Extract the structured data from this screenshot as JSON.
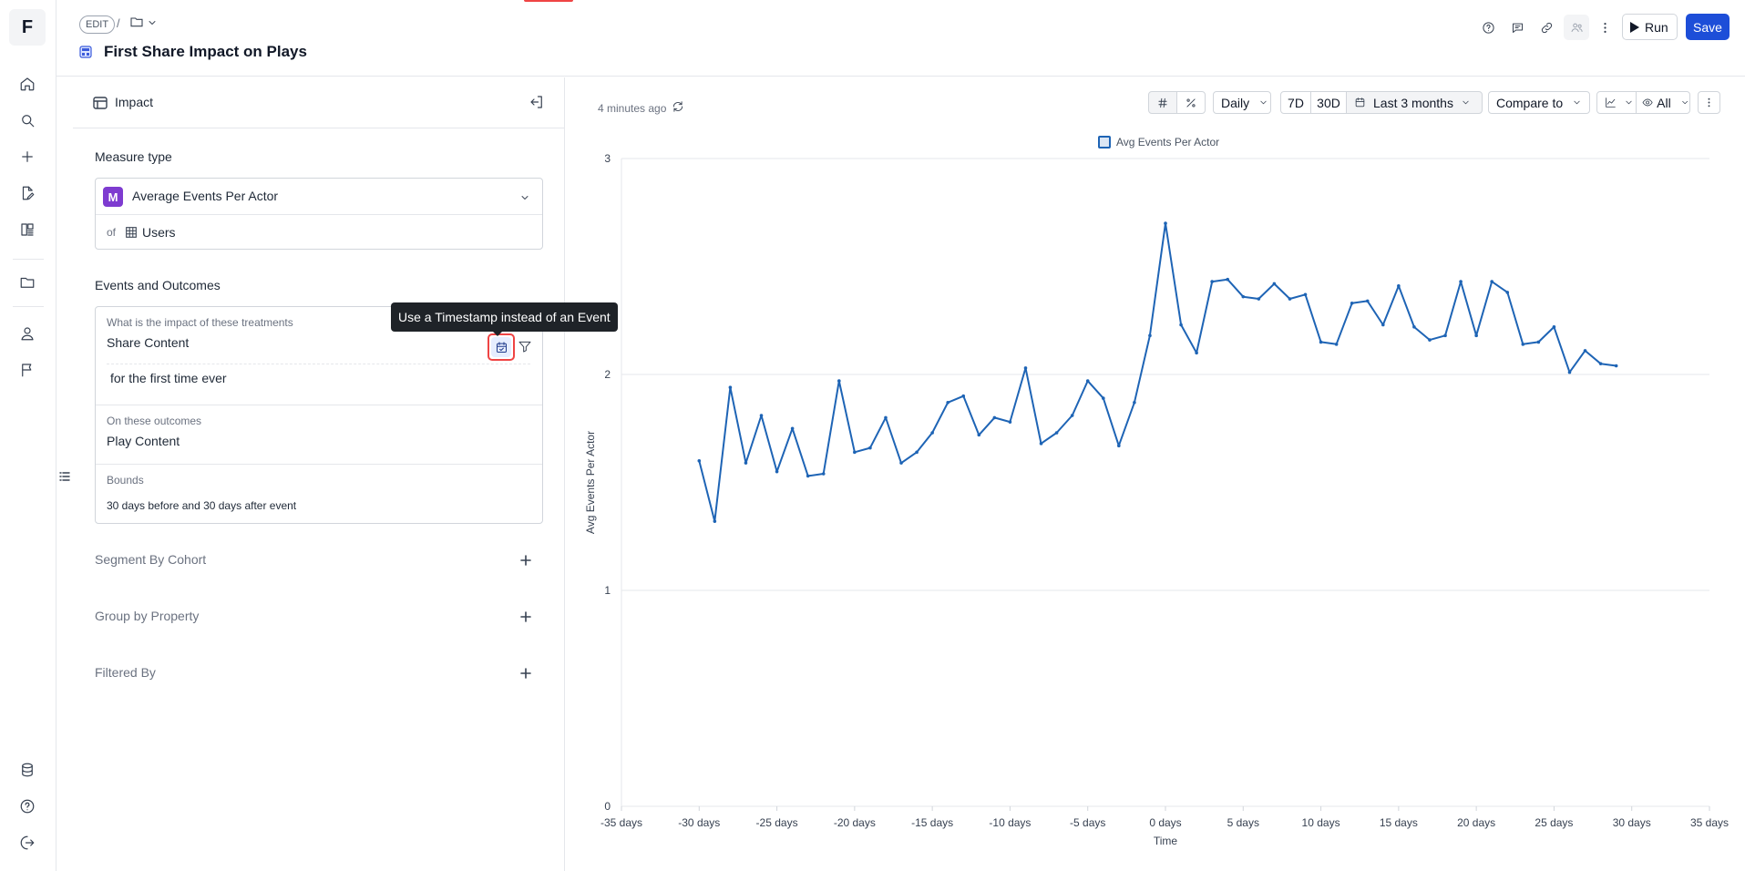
{
  "app": {
    "logo_letter": "F"
  },
  "rail": {
    "items": [
      "home-icon",
      "search-icon",
      "plus-icon",
      "edit-file-icon",
      "dashboard-icon",
      "folder-icon",
      "user-icon",
      "flag-icon"
    ],
    "bottom": [
      "database-icon",
      "help-icon",
      "logout-icon"
    ]
  },
  "header": {
    "edit_label": "EDIT",
    "separator": "/",
    "title": "First Share Impact on Plays",
    "run_label": "Run",
    "save_label": "Save",
    "accent": "#1d4ed8"
  },
  "panel": {
    "title": "Impact",
    "measure_section": "Measure type",
    "measure_badge": "M",
    "measure_value": "Average Events Per Actor",
    "of_label": "of",
    "of_value": "Users",
    "events_section": "Events and Outcomes",
    "treatments_label": "What is the impact of these treatments",
    "treatment_value": "Share Content",
    "treatment_qualifier": "for the first time ever",
    "outcomes_label": "On these outcomes",
    "outcome_value": "Play Content",
    "bounds_label": "Bounds",
    "bounds_value": "30 days before and 30 days after event",
    "tooltip": "Use a Timestamp instead of an Event",
    "segment_label": "Segment By Cohort",
    "group_label": "Group by Property",
    "filter_label": "Filtered By"
  },
  "toolbar": {
    "updated": "4 minutes ago",
    "granularity": "Daily",
    "range_7d": "7D",
    "range_30d": "30D",
    "range_custom": "Last 3 months",
    "compare": "Compare to",
    "visibility": "All"
  },
  "chart_data": {
    "type": "line",
    "legend": [
      "Avg Events Per Actor"
    ],
    "xlabel": "Time",
    "ylabel": "Avg Events Per Actor",
    "xlim": [
      -35,
      35
    ],
    "ylim": [
      0,
      3
    ],
    "x_ticks": [
      -35,
      -30,
      -25,
      -20,
      -15,
      -10,
      -5,
      0,
      5,
      10,
      15,
      20,
      25,
      30,
      35
    ],
    "x_tick_labels": [
      "-35 days",
      "-30 days",
      "-25 days",
      "-20 days",
      "-15 days",
      "-10 days",
      "-5 days",
      "0 days",
      "5 days",
      "10 days",
      "15 days",
      "20 days",
      "25 days",
      "30 days",
      "35 days"
    ],
    "y_ticks": [
      0,
      1,
      2,
      3
    ],
    "y_tick_labels": [
      "0",
      "1",
      "2",
      "3"
    ],
    "grid": "horizontal",
    "color": "#1e64b5",
    "series": [
      {
        "name": "Avg Events Per Actor",
        "x": [
          -30,
          -29,
          -28,
          -27,
          -26,
          -25,
          -24,
          -23,
          -22,
          -21,
          -20,
          -19,
          -18,
          -17,
          -16,
          -15,
          -14,
          -13,
          -12,
          -11,
          -10,
          -9,
          -8,
          -7,
          -6,
          -5,
          -4,
          -3,
          -2,
          -1,
          0,
          1,
          2,
          3,
          4,
          5,
          6,
          7,
          8,
          9,
          10,
          11,
          12,
          13,
          14,
          15,
          16,
          17,
          18,
          19,
          20,
          21,
          22,
          23,
          24,
          25,
          26,
          27,
          28,
          29
        ],
        "values": [
          1.6,
          1.32,
          1.94,
          1.59,
          1.81,
          1.55,
          1.75,
          1.53,
          1.54,
          1.97,
          1.64,
          1.66,
          1.8,
          1.59,
          1.64,
          1.73,
          1.87,
          1.9,
          1.72,
          1.8,
          1.78,
          2.03,
          1.68,
          1.73,
          1.81,
          1.97,
          1.89,
          1.67,
          1.87,
          2.18,
          2.7,
          2.23,
          2.1,
          2.43,
          2.44,
          2.36,
          2.35,
          2.42,
          2.35,
          2.37,
          2.15,
          2.14,
          2.33,
          2.34,
          2.23,
          2.41,
          2.22,
          2.16,
          2.18,
          2.43,
          2.18,
          2.43,
          2.38,
          2.14,
          2.15,
          2.22,
          2.01,
          2.11,
          2.05,
          2.04
        ]
      }
    ]
  }
}
